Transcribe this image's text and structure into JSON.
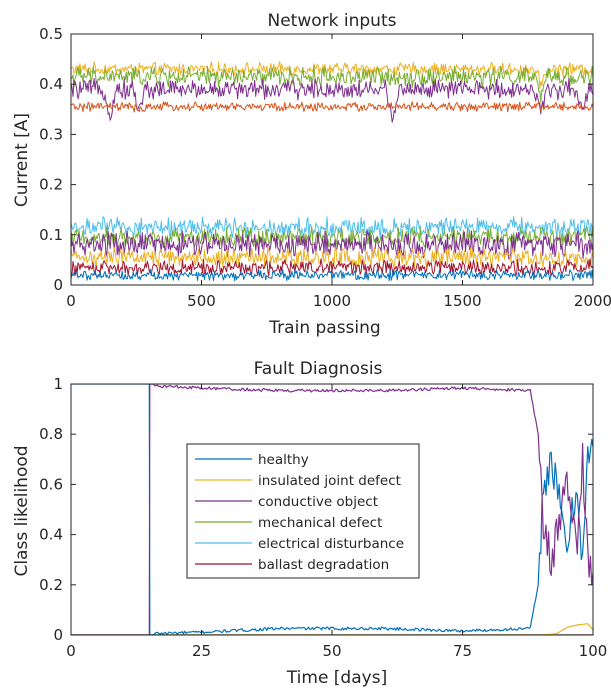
{
  "chart_data": [
    {
      "type": "line",
      "title": "Network inputs",
      "xlabel": "Train passing",
      "ylabel": "Current [A]",
      "xlim": [
        0,
        2000
      ],
      "ylim": [
        0,
        0.5
      ],
      "xticks": [
        "0",
        "500",
        "1000",
        "1500",
        "2000"
      ],
      "yticks": [
        "0",
        "0.1",
        "0.2",
        "0.3",
        "0.4",
        "0.5"
      ],
      "xtick_values": [
        0,
        500,
        1000,
        1500,
        2000
      ],
      "ytick_values": [
        0,
        0.1,
        0.2,
        0.3,
        0.4,
        0.5
      ],
      "grid": false,
      "series": [
        {
          "color": "#EDB120",
          "mean": 0.43,
          "amplitude": 0.01,
          "dips": [
            [
              1800,
              -0.03
            ]
          ]
        },
        {
          "color": "#77AC30",
          "mean": 0.415,
          "amplitude": 0.015,
          "dips": [
            [
              1800,
              -0.04
            ]
          ]
        },
        {
          "color": "#7E2F8E",
          "mean": 0.39,
          "amplitude": 0.015,
          "dips": [
            [
              150,
              -0.05
            ],
            [
              260,
              -0.04
            ],
            [
              1230,
              -0.06
            ],
            [
              1800,
              -0.05
            ],
            [
              1960,
              -0.04
            ]
          ]
        },
        {
          "color": "#D95319",
          "mean": 0.355,
          "amplitude": 0.007,
          "dips": [
            [
              260,
              -0.01
            ]
          ]
        },
        {
          "color": "#4DBEEE",
          "mean": 0.115,
          "amplitude": 0.015,
          "dips": []
        },
        {
          "color": "#77AC30",
          "mean": 0.095,
          "amplitude": 0.015,
          "dips": []
        },
        {
          "color": "#7E2F8E",
          "mean": 0.08,
          "amplitude": 0.02,
          "dips": []
        },
        {
          "color": "#EDB120",
          "mean": 0.055,
          "amplitude": 0.015,
          "dips": []
        },
        {
          "color": "#A2142F",
          "mean": 0.035,
          "amplitude": 0.012,
          "dips": []
        },
        {
          "color": "#0072BD",
          "mean": 0.02,
          "amplitude": 0.008,
          "dips": []
        }
      ]
    },
    {
      "type": "line",
      "title": "Fault Diagnosis",
      "xlabel": "Time [days]",
      "ylabel": "Class likelihood",
      "xlim": [
        0,
        100
      ],
      "ylim": [
        0,
        1
      ],
      "xticks": [
        "0",
        "25",
        "50",
        "75",
        "100"
      ],
      "yticks": [
        "0",
        "0.2",
        "0.4",
        "0.6",
        "0.8",
        "1"
      ],
      "xtick_values": [
        0,
        25,
        50,
        75,
        100
      ],
      "ytick_values": [
        0,
        0.2,
        0.4,
        0.6,
        0.8,
        1
      ],
      "grid": false,
      "legend_position": "center",
      "series": [
        {
          "name": "healthy",
          "color": "#0072BD",
          "points": [
            [
              0,
              1
            ],
            [
              15,
              1
            ],
            [
              15.1,
              0
            ],
            [
              25,
              0.005
            ],
            [
              40,
              0.02
            ],
            [
              60,
              0.02
            ],
            [
              75,
              0.01
            ],
            [
              88,
              0.02
            ],
            [
              89.5,
              0.2
            ],
            [
              90.5,
              0.6
            ],
            [
              92,
              0.7
            ],
            [
              95,
              0.35
            ],
            [
              97,
              0.6
            ],
            [
              98,
              0.3
            ],
            [
              99,
              0.7
            ],
            [
              100,
              0.75
            ]
          ]
        },
        {
          "name": "insulated joint defect",
          "color": "#EDB120",
          "points": [
            [
              0,
              0
            ],
            [
              90,
              0
            ],
            [
              93,
              0.005
            ],
            [
              95,
              0.03
            ],
            [
              97,
              0.04
            ],
            [
              99,
              0.045
            ],
            [
              100,
              0.02
            ]
          ]
        },
        {
          "name": "conductive object",
          "color": "#7E2F8E",
          "points": [
            [
              0,
              0
            ],
            [
              15,
              0
            ],
            [
              15.1,
              1
            ],
            [
              25,
              0.99
            ],
            [
              40,
              0.98
            ],
            [
              60,
              0.98
            ],
            [
              75,
              0.99
            ],
            [
              88,
              0.98
            ],
            [
              89.5,
              0.8
            ],
            [
              90.5,
              0.4
            ],
            [
              92,
              0.3
            ],
            [
              95,
              0.6
            ],
            [
              97,
              0.35
            ],
            [
              98,
              0.7
            ],
            [
              99,
              0.3
            ],
            [
              100,
              0.25
            ]
          ]
        },
        {
          "name": "mechanical defect",
          "color": "#77AC30",
          "points": [
            [
              0,
              0
            ],
            [
              100,
              0
            ]
          ]
        },
        {
          "name": "electrical disturbance",
          "color": "#4DBEEE",
          "points": [
            [
              0,
              0
            ],
            [
              100,
              0
            ]
          ]
        },
        {
          "name": "ballast degradation",
          "color": "#A2142F",
          "points": [
            [
              0,
              0
            ],
            [
              100,
              0
            ]
          ]
        }
      ]
    }
  ]
}
